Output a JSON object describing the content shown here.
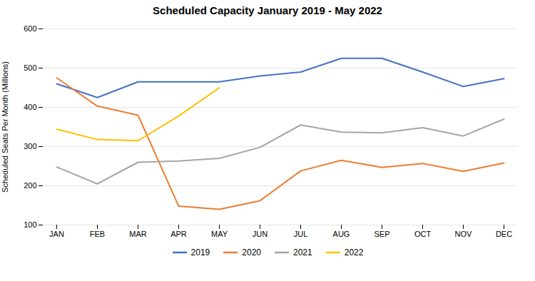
{
  "chart_data": {
    "type": "line",
    "title": "Scheduled Capacity January 2019  - May 2022",
    "ylabel": "Scheduled Seats Per Month (Millions)",
    "categories": [
      "JAN",
      "FEB",
      "MAR",
      "APR",
      "MAY",
      "JUN",
      "JUL",
      "AUG",
      "SEP",
      "OCT",
      "NOV",
      "DEC"
    ],
    "series": [
      {
        "name": "2019",
        "color": "#4472C4",
        "values": [
          460,
          425,
          465,
          465,
          465,
          480,
          490,
          525,
          525,
          490,
          453,
          473
        ]
      },
      {
        "name": "2020",
        "color": "#ED7D31",
        "values": [
          475,
          403,
          380,
          148,
          140,
          162,
          238,
          265,
          247,
          257,
          237,
          258
        ]
      },
      {
        "name": "2021",
        "color": "#A5A5A5",
        "values": [
          248,
          205,
          260,
          263,
          270,
          298,
          355,
          337,
          335,
          348,
          327,
          370
        ]
      },
      {
        "name": "2022",
        "color": "#FFC000",
        "values": [
          344,
          318,
          315,
          378,
          450,
          null,
          null,
          null,
          null,
          null,
          null,
          null
        ]
      }
    ],
    "ylim": [
      100,
      600
    ],
    "yticks": [
      100,
      200,
      300,
      400,
      500,
      600
    ],
    "grid": true,
    "legend": "bottom"
  }
}
